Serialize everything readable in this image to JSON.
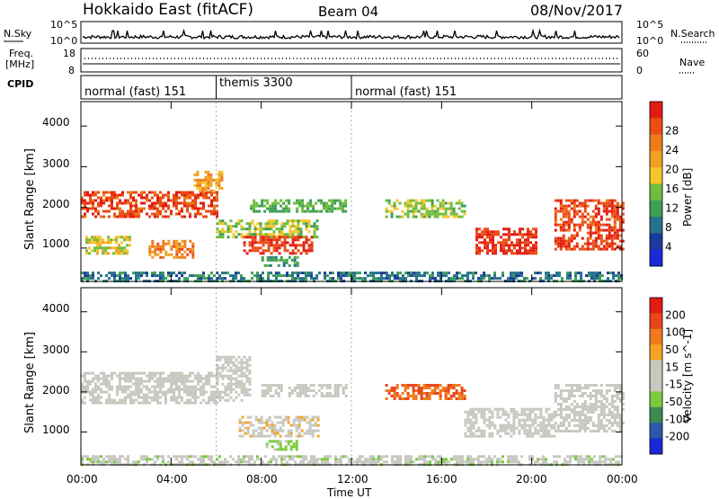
{
  "header": {
    "station": "Hokkaido East (fitACF)",
    "beam": "Beam 04",
    "date": "08/Nov/2017"
  },
  "noise_panel": {
    "left_label": "N.Sky",
    "left_ticks": [
      "10^5",
      "10^0"
    ],
    "right_ticks": [
      "10^5",
      "10^0"
    ],
    "right_label": "N.Search"
  },
  "freq_panel": {
    "label_line1": "Freq.",
    "label_line2": "[MHz]",
    "left_ticks": [
      "18",
      "8"
    ],
    "right_ticks": [
      "60",
      "0"
    ],
    "right_label": "Nave"
  },
  "cpid_panel": {
    "label": "CPID",
    "segments": [
      {
        "name": "normal (fast) 151",
        "start_hour": 0,
        "end_hour": 6
      },
      {
        "name": "themis 3300",
        "start_hour": 6,
        "end_hour": 12
      },
      {
        "name": "normal (fast) 151",
        "start_hour": 12,
        "end_hour": 24
      }
    ]
  },
  "chart_data": [
    {
      "type": "heatmap",
      "parameter": "Power",
      "ylabel": "Slant Range [km]",
      "yticks": [
        "1000",
        "2000",
        "3000",
        "4000"
      ],
      "ylim": [
        180,
        4600
      ],
      "xlim": [
        0,
        24
      ],
      "colorbar": {
        "label": "Power [dB]",
        "ticks": [
          "4",
          "8",
          "12",
          "16",
          "20",
          "24",
          "28"
        ],
        "range": [
          0,
          30
        ],
        "colors": [
          "#1d27d8",
          "#1c3a9c",
          "#27728a",
          "#3f9e56",
          "#6fbe3c",
          "#f5c62a",
          "#f1a020",
          "#ef7a1b",
          "#ea4d15",
          "#e31b12"
        ]
      },
      "regions": [
        {
          "t0": 0.0,
          "t1": 6.0,
          "r0": 1800,
          "r1": 2400,
          "value": 26
        },
        {
          "t0": 0.2,
          "t1": 2.2,
          "r0": 900,
          "r1": 1300,
          "value": 16
        },
        {
          "t0": 3.0,
          "t1": 5.0,
          "r0": 800,
          "r1": 1200,
          "value": 22
        },
        {
          "t0": 5.0,
          "t1": 6.2,
          "r0": 2400,
          "r1": 2900,
          "value": 20
        },
        {
          "t0": 6.0,
          "t1": 10.5,
          "r0": 1300,
          "r1": 1700,
          "value": 14
        },
        {
          "t0": 7.2,
          "t1": 10.3,
          "r0": 900,
          "r1": 1300,
          "value": 27
        },
        {
          "t0": 8.0,
          "t1": 9.6,
          "r0": 550,
          "r1": 800,
          "value": 10
        },
        {
          "t0": 7.5,
          "t1": 11.8,
          "r0": 1900,
          "r1": 2200,
          "value": 12
        },
        {
          "t0": 13.5,
          "t1": 17.0,
          "r0": 1800,
          "r1": 2200,
          "value": 14
        },
        {
          "t0": 17.5,
          "t1": 20.2,
          "r0": 900,
          "r1": 1500,
          "value": 27
        },
        {
          "t0": 21.0,
          "t1": 24.0,
          "r0": 1000,
          "r1": 2200,
          "value": 26
        },
        {
          "t0": 0.0,
          "t1": 24.0,
          "r0": 180,
          "r1": 420,
          "value": 8
        }
      ]
    },
    {
      "type": "heatmap",
      "parameter": "Velocity",
      "ylabel": "Slant Range [km]",
      "yticks": [
        "1000",
        "2000",
        "3000",
        "4000"
      ],
      "ylim": [
        180,
        4600
      ],
      "xlim": [
        0,
        24
      ],
      "colorbar": {
        "label": "Velocity [m s^-1]",
        "ticks": [
          "200",
          "100",
          "50",
          "15",
          "-15",
          "-50",
          "-100",
          "-200"
        ],
        "range": [
          -250,
          250
        ],
        "colors": [
          "#1d27d8",
          "#2a5aa8",
          "#3d8a4e",
          "#7ccb3f",
          "#c8c8c0",
          "#c8c8c0",
          "#f6a324",
          "#ef7a1b",
          "#e84616",
          "#e31b12"
        ]
      },
      "regions": [
        {
          "t0": 0.0,
          "t1": 6.0,
          "r0": 1700,
          "r1": 2500,
          "value": 0
        },
        {
          "t0": 6.0,
          "t1": 7.5,
          "r0": 1800,
          "r1": 2900,
          "value": 0
        },
        {
          "t0": 7.0,
          "t1": 10.5,
          "r0": 900,
          "r1": 1400,
          "value": 40
        },
        {
          "t0": 8.2,
          "t1": 9.6,
          "r0": 550,
          "r1": 800,
          "value": -60
        },
        {
          "t0": 8.0,
          "t1": 11.8,
          "r0": 1900,
          "r1": 2200,
          "value": 30
        },
        {
          "t0": 13.5,
          "t1": 17.0,
          "r0": 1800,
          "r1": 2200,
          "value": 150
        },
        {
          "t0": 17.0,
          "t1": 21.0,
          "r0": 900,
          "r1": 1600,
          "value": 0
        },
        {
          "t0": 21.0,
          "t1": 24.0,
          "r0": 1000,
          "r1": 2200,
          "value": 0
        },
        {
          "t0": 0.0,
          "t1": 24.0,
          "r0": 180,
          "r1": 420,
          "value": -40
        }
      ]
    }
  ],
  "xaxis": {
    "label": "Time UT",
    "ticks": [
      "00:00",
      "04:00",
      "08:00",
      "12:00",
      "16:00",
      "20:00",
      "00:00"
    ]
  }
}
